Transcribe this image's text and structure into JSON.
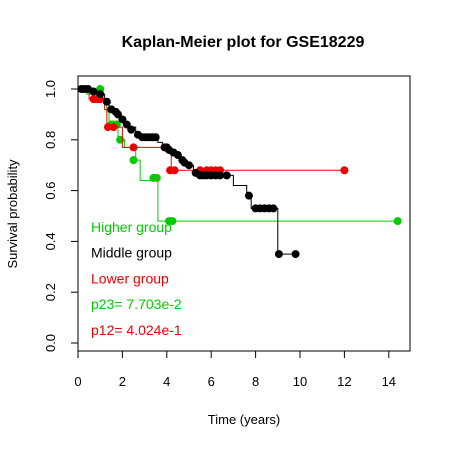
{
  "chart_data": {
    "type": "line",
    "title": "Kaplan-Meier plot for GSE18229",
    "xlabel": "Time (years)",
    "ylabel": "Survival probability",
    "xlim": [
      0,
      14.6
    ],
    "ylim": [
      0,
      1.0
    ],
    "x_ticks": [
      0,
      2,
      4,
      6,
      8,
      10,
      12,
      14
    ],
    "y_ticks": [
      0.0,
      0.2,
      0.4,
      0.6,
      0.8,
      1.0
    ],
    "x_tick_labels": [
      "0",
      "2",
      "4",
      "6",
      "8",
      "10",
      "12",
      "14"
    ],
    "y_tick_labels": [
      "0.0",
      "0.2",
      "0.4",
      "0.6",
      "0.8",
      "1.0"
    ],
    "grid": false,
    "legend_position": "bottom-left",
    "series": [
      {
        "name": "Higher group",
        "color": "#00cc00",
        "steps": [
          [
            0,
            1.0
          ],
          [
            0.4,
            0.98
          ],
          [
            1.0,
            0.96
          ],
          [
            1.3,
            0.91
          ],
          [
            1.4,
            0.85
          ],
          [
            1.8,
            0.8
          ],
          [
            2.1,
            0.77
          ],
          [
            2.6,
            0.72
          ],
          [
            2.8,
            0.64
          ],
          [
            3.6,
            0.48
          ],
          [
            14.4,
            0.48
          ]
        ],
        "censor": [
          [
            1.0,
            1.0
          ],
          [
            1.5,
            0.86
          ],
          [
            1.6,
            0.86
          ],
          [
            1.75,
            0.86
          ],
          [
            1.9,
            0.8
          ],
          [
            2.5,
            0.72
          ],
          [
            3.4,
            0.65
          ],
          [
            3.55,
            0.65
          ],
          [
            4.1,
            0.48
          ],
          [
            4.25,
            0.48
          ],
          [
            14.4,
            0.48
          ]
        ]
      },
      {
        "name": "Middle group",
        "color": "#000000",
        "steps": [
          [
            0,
            1.0
          ],
          [
            0.6,
            0.99
          ],
          [
            0.9,
            0.98
          ],
          [
            1.2,
            0.96
          ],
          [
            1.4,
            0.93
          ],
          [
            1.6,
            0.91
          ],
          [
            1.9,
            0.89
          ],
          [
            2.1,
            0.87
          ],
          [
            2.3,
            0.85
          ],
          [
            2.6,
            0.83
          ],
          [
            2.8,
            0.81
          ],
          [
            3.6,
            0.79
          ],
          [
            3.8,
            0.77
          ],
          [
            4.2,
            0.76
          ],
          [
            4.4,
            0.74
          ],
          [
            4.6,
            0.72
          ],
          [
            4.9,
            0.7
          ],
          [
            5.2,
            0.68
          ],
          [
            5.4,
            0.66
          ],
          [
            6.5,
            0.66
          ],
          [
            7.0,
            0.62
          ],
          [
            7.6,
            0.58
          ],
          [
            7.8,
            0.53
          ],
          [
            9.0,
            0.35
          ],
          [
            9.8,
            0.35
          ]
        ],
        "censor": [
          [
            0.15,
            1.0
          ],
          [
            0.3,
            1.0
          ],
          [
            0.45,
            1.0
          ],
          [
            0.7,
            0.99
          ],
          [
            1.0,
            0.98
          ],
          [
            1.3,
            0.95
          ],
          [
            1.5,
            0.92
          ],
          [
            1.7,
            0.91
          ],
          [
            1.8,
            0.9
          ],
          [
            2.0,
            0.88
          ],
          [
            2.2,
            0.86
          ],
          [
            2.4,
            0.84
          ],
          [
            2.7,
            0.82
          ],
          [
            2.9,
            0.81
          ],
          [
            3.05,
            0.81
          ],
          [
            3.2,
            0.81
          ],
          [
            3.35,
            0.81
          ],
          [
            3.5,
            0.81
          ],
          [
            3.9,
            0.77
          ],
          [
            4.0,
            0.77
          ],
          [
            4.1,
            0.76
          ],
          [
            4.3,
            0.75
          ],
          [
            4.5,
            0.74
          ],
          [
            4.7,
            0.72
          ],
          [
            4.8,
            0.71
          ],
          [
            5.0,
            0.7
          ],
          [
            5.3,
            0.67
          ],
          [
            5.5,
            0.66
          ],
          [
            5.65,
            0.66
          ],
          [
            5.8,
            0.66
          ],
          [
            6.0,
            0.66
          ],
          [
            6.2,
            0.66
          ],
          [
            6.4,
            0.66
          ],
          [
            6.7,
            0.66
          ],
          [
            7.7,
            0.58
          ],
          [
            8.0,
            0.53
          ],
          [
            8.2,
            0.53
          ],
          [
            8.4,
            0.53
          ],
          [
            8.6,
            0.53
          ],
          [
            8.8,
            0.53
          ],
          [
            9.05,
            0.35
          ],
          [
            9.8,
            0.35
          ]
        ]
      },
      {
        "name": "Lower group",
        "color": "#ee0000",
        "steps": [
          [
            0,
            1.0
          ],
          [
            0.5,
            0.96
          ],
          [
            1.2,
            0.92
          ],
          [
            1.3,
            0.85
          ],
          [
            1.8,
            0.85
          ],
          [
            2.0,
            0.77
          ],
          [
            4.0,
            0.77
          ],
          [
            4.2,
            0.68
          ],
          [
            12.0,
            0.68
          ]
        ],
        "censor": [
          [
            0.7,
            0.96
          ],
          [
            0.85,
            0.96
          ],
          [
            1.0,
            0.96
          ],
          [
            1.35,
            0.85
          ],
          [
            1.6,
            0.85
          ],
          [
            2.5,
            0.77
          ],
          [
            4.15,
            0.68
          ],
          [
            4.35,
            0.68
          ],
          [
            5.5,
            0.68
          ],
          [
            5.8,
            0.68
          ],
          [
            6.0,
            0.68
          ],
          [
            6.2,
            0.68
          ],
          [
            6.4,
            0.68
          ],
          [
            12.0,
            0.68
          ]
        ]
      }
    ],
    "legend_entries": [
      {
        "label": "Higher group",
        "color": "#00cc00"
      },
      {
        "label": "Middle group",
        "color": "#000000"
      },
      {
        "label": "Lower group",
        "color": "#ee0000"
      },
      {
        "label": "p23= 7.703e-2",
        "color": "#00cc00"
      },
      {
        "label": "p12= 4.024e-1",
        "color": "#ee0000"
      }
    ]
  }
}
